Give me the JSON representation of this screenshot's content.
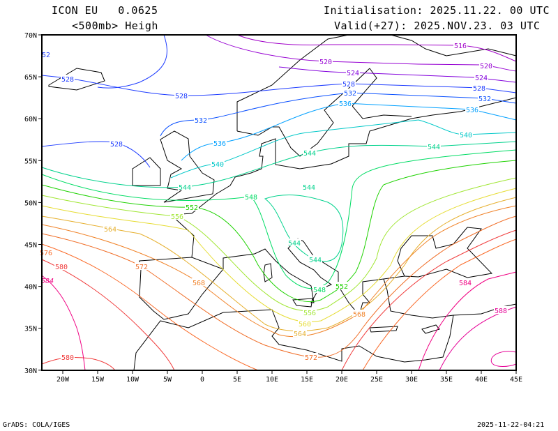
{
  "header": {
    "model": "ICON EU   0.0625",
    "field": "<500mb> Heigh",
    "init": "Initialisation: 2025.11.22. 00 UTC",
    "valid": "Valid(+27): 2025.NOV.23. 03 UTC"
  },
  "footer": {
    "left": "GrADS: COLA/IGES",
    "right": "2025-11-22-04:21"
  },
  "axes": {
    "lon_labels": [
      "20W",
      "15W",
      "10W",
      "5W",
      "0",
      "5E",
      "10E",
      "15E",
      "20E",
      "25E",
      "30E",
      "35E",
      "40E",
      "45E"
    ],
    "lat_labels": [
      "70N",
      "65N",
      "60N",
      "55N",
      "50N",
      "45N",
      "40N",
      "35N",
      "30N"
    ]
  },
  "map": {
    "extent_lon": [
      -23,
      45
    ],
    "extent_lat": [
      30,
      70
    ],
    "contour_unit": "dam",
    "contours": [
      {
        "level": "516",
        "color": "#a000c8"
      },
      {
        "level": "520",
        "color": "#9600d2"
      },
      {
        "level": "524",
        "color": "#8200dc"
      },
      {
        "level": "528",
        "color": "#1e3cff"
      },
      {
        "level": "532",
        "color": "#0a50ff"
      },
      {
        "level": "536",
        "color": "#00a0ff"
      },
      {
        "level": "540",
        "color": "#00c8c8"
      },
      {
        "level": "544",
        "color": "#00d28c"
      },
      {
        "level": "548",
        "color": "#00dc64"
      },
      {
        "level": "552",
        "color": "#1ed200"
      },
      {
        "level": "556",
        "color": "#a0e632"
      },
      {
        "level": "560",
        "color": "#e6dc32"
      },
      {
        "level": "564",
        "color": "#e6af2d"
      },
      {
        "level": "568",
        "color": "#f08228"
      },
      {
        "level": "572",
        "color": "#f06e28"
      },
      {
        "level": "576",
        "color": "#fa6a28"
      },
      {
        "level": "580",
        "color": "#f03c3c"
      },
      {
        "level": "584",
        "color": "#f00082"
      },
      {
        "level": "588",
        "color": "#e60096"
      }
    ],
    "left_edge_labels": [
      "52",
      "576",
      "584"
    ]
  }
}
